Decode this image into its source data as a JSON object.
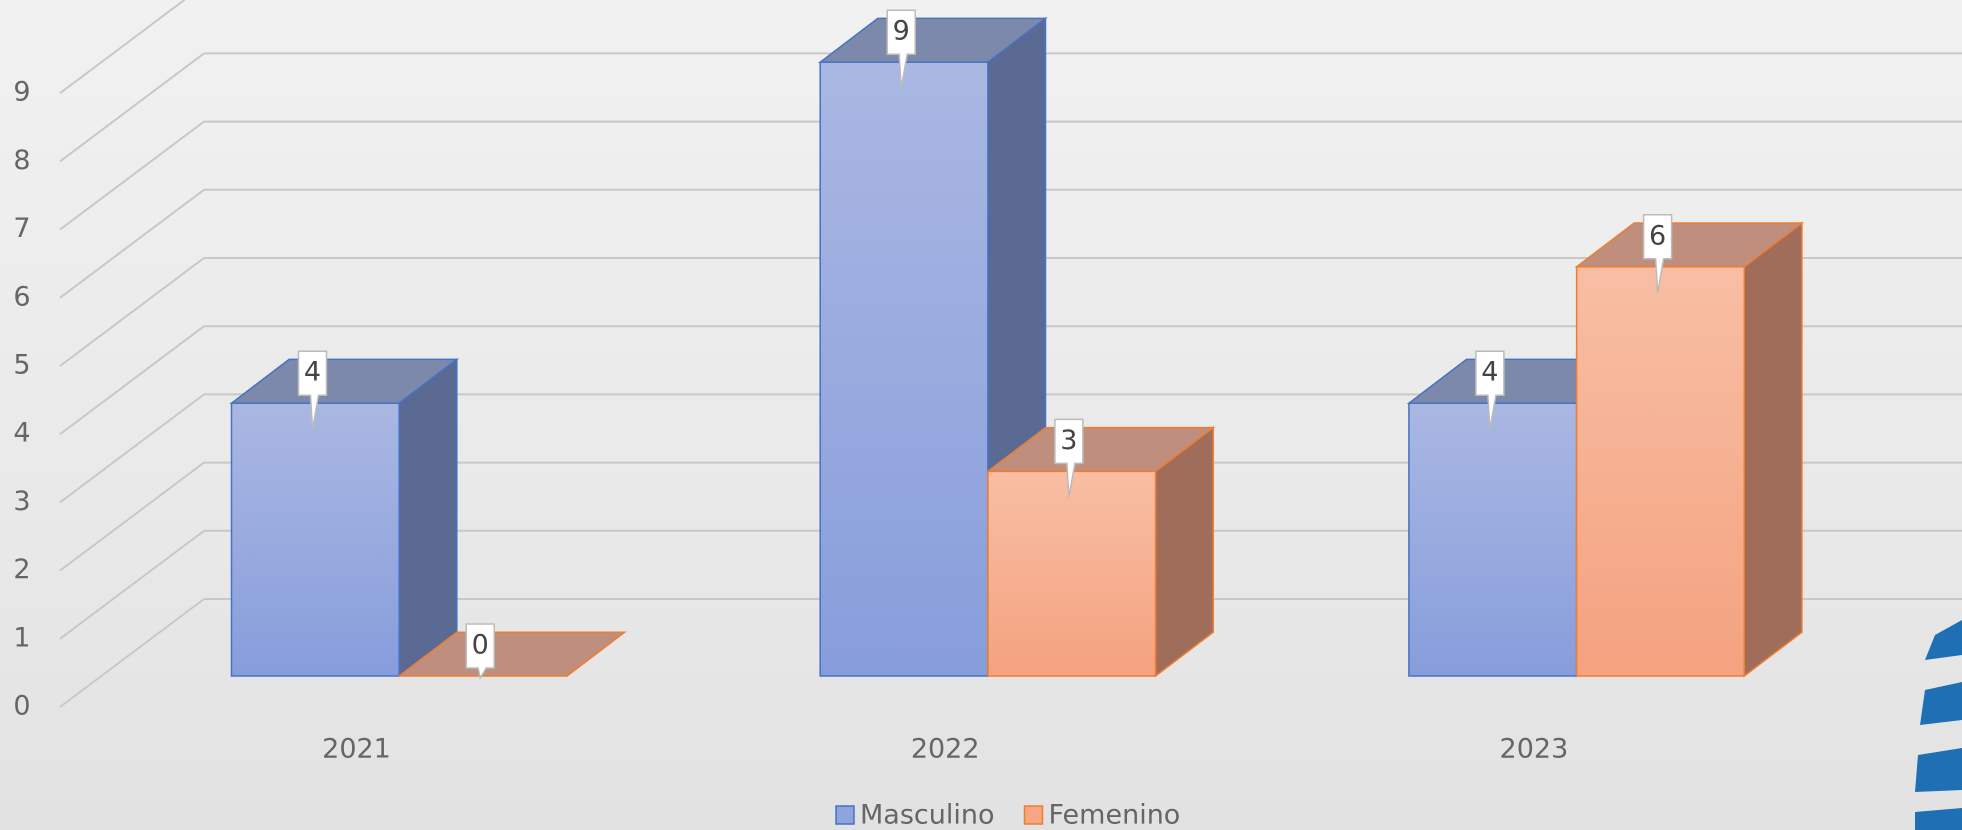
{
  "chart_data": {
    "type": "bar3d",
    "categories": [
      "2021",
      "2022",
      "2023"
    ],
    "series": [
      {
        "name": "Masculino",
        "color": "#8fa3dc",
        "values": [
          4,
          9,
          4
        ]
      },
      {
        "name": "Femenino",
        "color": "#f5a682",
        "values": [
          0,
          3,
          6
        ]
      }
    ],
    "ylim": [
      0,
      9
    ],
    "yticks": [
      0,
      1,
      2,
      3,
      4,
      5,
      6,
      7,
      8,
      9
    ],
    "grid": true,
    "data_labels": true,
    "legend": "bottom"
  }
}
